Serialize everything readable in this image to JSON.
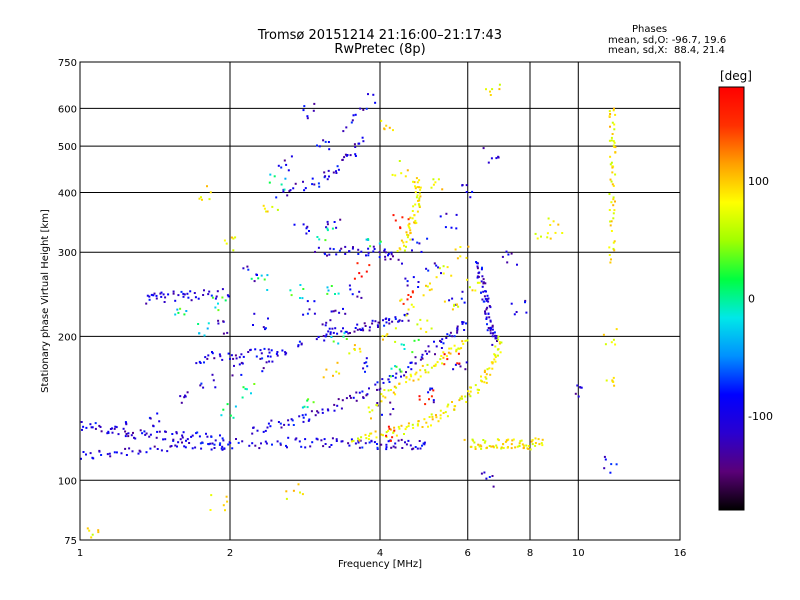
{
  "chart_data": {
    "type": "scatter",
    "title": "Tromsø 20151214 21:16:00–21:17:43",
    "subtitle": "RwPretec (8p)",
    "xlabel": "Frequency [MHz]",
    "ylabel": "Stationary phase Virtual Height [km]",
    "x_scale": "log",
    "y_scale": "log",
    "xlim": [
      1,
      16
    ],
    "ylim": [
      75,
      750
    ],
    "x_ticks": [
      1,
      2,
      4,
      6,
      8,
      10,
      16
    ],
    "x_gridlines": [
      1,
      2,
      4,
      6,
      8,
      10,
      16
    ],
    "y_ticks": [
      75,
      100,
      200,
      300,
      400,
      500,
      600,
      750
    ],
    "y_gridlines": [
      75,
      100,
      200,
      300,
      400,
      500,
      600,
      750
    ],
    "grid": true,
    "legend": {
      "title": "Phases",
      "lines": [
        "mean, sd,O: -96.7, 19.6",
        "mean, sd,X:  88.4, 21.4"
      ],
      "placement": "top-right"
    },
    "colorbar": {
      "label": "[deg]",
      "ticks": [
        100,
        0,
        -100
      ],
      "range": [
        -180,
        180
      ],
      "colors": [
        "#000000",
        "#5a0078",
        "#2a00d0",
        "#0000ff",
        "#0090ff",
        "#00e8e8",
        "#00ff40",
        "#a0ff00",
        "#ffff00",
        "#ffa000",
        "#ff3000",
        "#ff0000"
      ]
    },
    "series": [
      {
        "description_key": "O",
        "color_range_deg": [
          -140,
          -70
        ],
        "traces": [
          [
            [
              1.0,
              112
            ],
            [
              1.2,
              115
            ],
            [
              1.5,
              117
            ],
            [
              1.8,
              118
            ],
            [
              2.0,
              119
            ],
            [
              2.5,
              120
            ],
            [
              3.0,
              120
            ],
            [
              3.5,
              120
            ],
            [
              4.0,
              119
            ],
            [
              4.5,
              119
            ],
            [
              5.0,
              119
            ]
          ],
          [
            [
              1.0,
              130
            ],
            [
              1.15,
              127
            ],
            [
              1.3,
              125
            ],
            [
              1.5,
              124
            ],
            [
              1.7,
              123
            ],
            [
              2.0,
              121
            ]
          ],
          [
            [
              2.2,
              128
            ],
            [
              2.6,
              132
            ],
            [
              3.0,
              138
            ],
            [
              3.5,
              148
            ],
            [
              4.0,
              158
            ],
            [
              4.5,
              170
            ],
            [
              5.0,
              185
            ],
            [
              5.5,
              200
            ],
            [
              6.0,
              215
            ]
          ],
          [
            [
              3.0,
              200
            ],
            [
              3.4,
              205
            ],
            [
              3.8,
              210
            ],
            [
              4.2,
              215
            ],
            [
              4.6,
              218
            ]
          ],
          [
            [
              3.0,
              300
            ],
            [
              3.5,
              305
            ],
            [
              4.0,
              300
            ],
            [
              4.4,
              290
            ]
          ],
          [
            [
              2.5,
              400
            ],
            [
              3.0,
              420
            ],
            [
              3.4,
              460
            ],
            [
              3.7,
              520
            ]
          ],
          [
            [
              1.35,
              240
            ],
            [
              1.5,
              242
            ],
            [
              1.7,
              244
            ],
            [
              2.0,
              246
            ]
          ],
          [
            [
              6.3,
              290
            ],
            [
              6.4,
              260
            ],
            [
              6.5,
              240
            ],
            [
              6.6,
              220
            ],
            [
              6.7,
              205
            ],
            [
              6.8,
              195
            ]
          ],
          [
            [
              1.7,
              180
            ],
            [
              2.0,
              182
            ],
            [
              2.3,
              184
            ],
            [
              2.6,
              186
            ]
          ]
        ],
        "points": [
          [
            1.2,
            128
          ],
          [
            1.4,
            135
          ],
          [
            1.6,
            150
          ],
          [
            1.8,
            160
          ],
          [
            2.1,
            170
          ],
          [
            2.4,
            175
          ],
          [
            2.7,
            190
          ],
          [
            3.1,
            210
          ],
          [
            3.3,
            230
          ],
          [
            3.6,
            250
          ],
          [
            2.2,
            270
          ],
          [
            2.8,
            330
          ],
          [
            3.2,
            350
          ],
          [
            2.6,
            460
          ],
          [
            3.1,
            500
          ],
          [
            3.5,
            560
          ],
          [
            3.8,
            620
          ],
          [
            2.9,
            590
          ],
          [
            4.8,
            310
          ],
          [
            5.5,
            350
          ],
          [
            6.0,
            400
          ],
          [
            6.7,
            480
          ],
          [
            1.9,
            210
          ],
          [
            2.3,
            215
          ],
          [
            2.9,
            230
          ],
          [
            3.7,
            175
          ],
          [
            4.1,
            140
          ],
          [
            5.2,
            150
          ],
          [
            5.8,
            170
          ],
          [
            4.6,
            260
          ],
          [
            5.1,
            280
          ],
          [
            5.7,
            240
          ],
          [
            11.5,
            108
          ],
          [
            9.8,
            152
          ],
          [
            6.6,
            100
          ],
          [
            7.3,
            290
          ],
          [
            7.6,
            230
          ]
        ]
      },
      {
        "description_key": "X",
        "color_range_deg": [
          60,
          110
        ],
        "traces": [
          [
            [
              3.5,
              121
            ],
            [
              4.0,
              124
            ],
            [
              4.5,
              128
            ],
            [
              5.0,
              133
            ],
            [
              5.5,
              140
            ],
            [
              6.0,
              150
            ],
            [
              6.5,
              163
            ],
            [
              6.8,
              180
            ],
            [
              7.0,
              200
            ]
          ],
          [
            [
              4.0,
              150
            ],
            [
              4.5,
              160
            ],
            [
              5.0,
              172
            ],
            [
              5.5,
              185
            ],
            [
              6.0,
              195
            ]
          ],
          [
            [
              6.0,
              119
            ],
            [
              6.5,
              119
            ],
            [
              7.0,
              119
            ],
            [
              7.5,
              119
            ],
            [
              8.0,
              119
            ],
            [
              8.5,
              120
            ]
          ],
          [
            [
              4.4,
              300
            ],
            [
              4.6,
              330
            ],
            [
              4.7,
              360
            ],
            [
              4.8,
              400
            ],
            [
              4.7,
              430
            ]
          ],
          [
            [
              11.7,
              600
            ],
            [
              11.7,
              520
            ],
            [
              11.7,
              440
            ],
            [
              11.7,
              360
            ],
            [
              11.7,
              280
            ]
          ]
        ],
        "points": [
          [
            3.8,
            140
          ],
          [
            4.2,
            200
          ],
          [
            4.5,
            230
          ],
          [
            5.0,
            250
          ],
          [
            5.4,
            270
          ],
          [
            5.8,
            300
          ],
          [
            4.1,
            560
          ],
          [
            4.4,
            450
          ],
          [
            5.2,
            420
          ],
          [
            3.2,
            170
          ],
          [
            3.6,
            190
          ],
          [
            4.9,
            210
          ],
          [
            5.6,
            230
          ],
          [
            6.2,
            255
          ],
          [
            8.5,
            330
          ],
          [
            9.0,
            340
          ],
          [
            1.8,
            400
          ],
          [
            2.4,
            380
          ],
          [
            2.0,
            310
          ],
          [
            1.9,
            90
          ],
          [
            2.7,
            95
          ],
          [
            11.6,
            200
          ],
          [
            11.6,
            160
          ],
          [
            6.8,
            650
          ],
          [
            1.05,
            78
          ]
        ]
      },
      {
        "description_key": "scattered",
        "color_range_deg": [
          -40,
          40
        ],
        "points": [
          [
            1.6,
            230
          ],
          [
            1.9,
            235
          ],
          [
            2.3,
            260
          ],
          [
            2.7,
            250
          ],
          [
            3.2,
            255
          ],
          [
            2.9,
            145
          ],
          [
            3.3,
            200
          ],
          [
            2.0,
            140
          ],
          [
            4.3,
            170
          ],
          [
            4.6,
            190
          ],
          [
            3.9,
            310
          ],
          [
            2.5,
            420
          ],
          [
            3.1,
            330
          ],
          [
            1.75,
            205
          ],
          [
            2.2,
            155
          ]
        ]
      },
      {
        "description_key": "outliers",
        "color_range_deg": [
          150,
          180
        ],
        "points": [
          [
            4.6,
            240
          ],
          [
            5.0,
            150
          ],
          [
            4.2,
            125
          ],
          [
            3.7,
            275
          ],
          [
            5.6,
            180
          ],
          [
            4.4,
            350
          ]
        ]
      }
    ]
  }
}
